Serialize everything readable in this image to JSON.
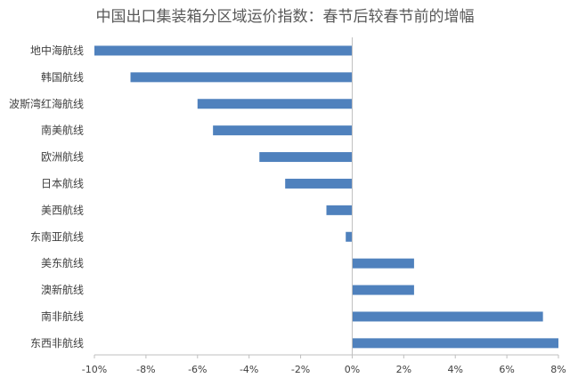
{
  "chart_data": {
    "type": "bar",
    "orientation": "horizontal",
    "title": "中国出口集装箱分区域运价指数：春节后较春节前的增幅",
    "categories": [
      "地中海航线",
      "韩国航线",
      "波斯湾红海航线",
      "南美航线",
      "欧洲航线",
      "日本航线",
      "美西航线",
      "东南亚航线",
      "美东航线",
      "澳新航线",
      "南非航线",
      "东西非航线"
    ],
    "values": [
      -10.0,
      -8.6,
      -6.0,
      -5.4,
      -3.6,
      -2.6,
      -1.0,
      -0.25,
      2.4,
      2.4,
      7.4,
      8.0
    ],
    "xlim": [
      -10,
      8
    ],
    "xticks": [
      -10,
      -8,
      -6,
      -4,
      -2,
      0,
      2,
      4,
      6,
      8
    ],
    "xtick_labels": [
      "-10%",
      "-8%",
      "-6%",
      "-4%",
      "-2%",
      "0%",
      "2%",
      "4%",
      "6%",
      "8%"
    ],
    "bar_color": "#4f81bd",
    "axis_color": "#bfbfbf",
    "grid": false,
    "legend": "none"
  }
}
